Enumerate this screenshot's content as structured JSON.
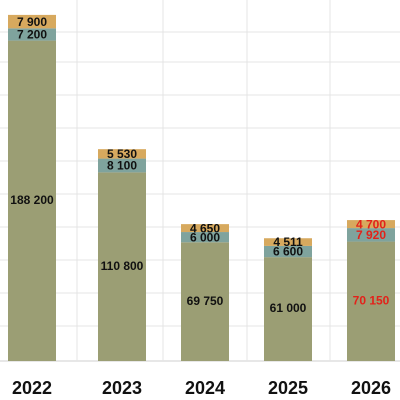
{
  "chart_data": {
    "type": "bar",
    "stacked": true,
    "title": "",
    "xlabel": "",
    "ylabel": "",
    "ylim": [
      0,
      205000
    ],
    "grid": true,
    "categories": [
      "2022",
      "2023",
      "2024",
      "2025",
      "2026"
    ],
    "series": [
      {
        "values": [
          188200,
          110800,
          69750,
          61000,
          70150
        ],
        "value_labels": [
          "188 200",
          "110 800",
          "69 750",
          "61 000",
          "70 150"
        ],
        "color": "#9b9e74"
      },
      {
        "values": [
          7200,
          8100,
          6000,
          6600,
          7920
        ],
        "value_labels": [
          "7 200",
          "8 100",
          "6 000",
          "6 600",
          "7 920"
        ],
        "color": "#7fa39d"
      },
      {
        "values": [
          7900,
          5530,
          4650,
          4511,
          4700
        ],
        "value_labels": [
          "7 900",
          "5 530",
          "4 650",
          "4 511",
          "4 700"
        ],
        "color": "#d7a95e"
      }
    ],
    "label_colors": {
      "default": "#111111",
      "highlight": "#e3221a",
      "highlight_category": "2026"
    },
    "gridline_color": "#e4e4e4"
  }
}
